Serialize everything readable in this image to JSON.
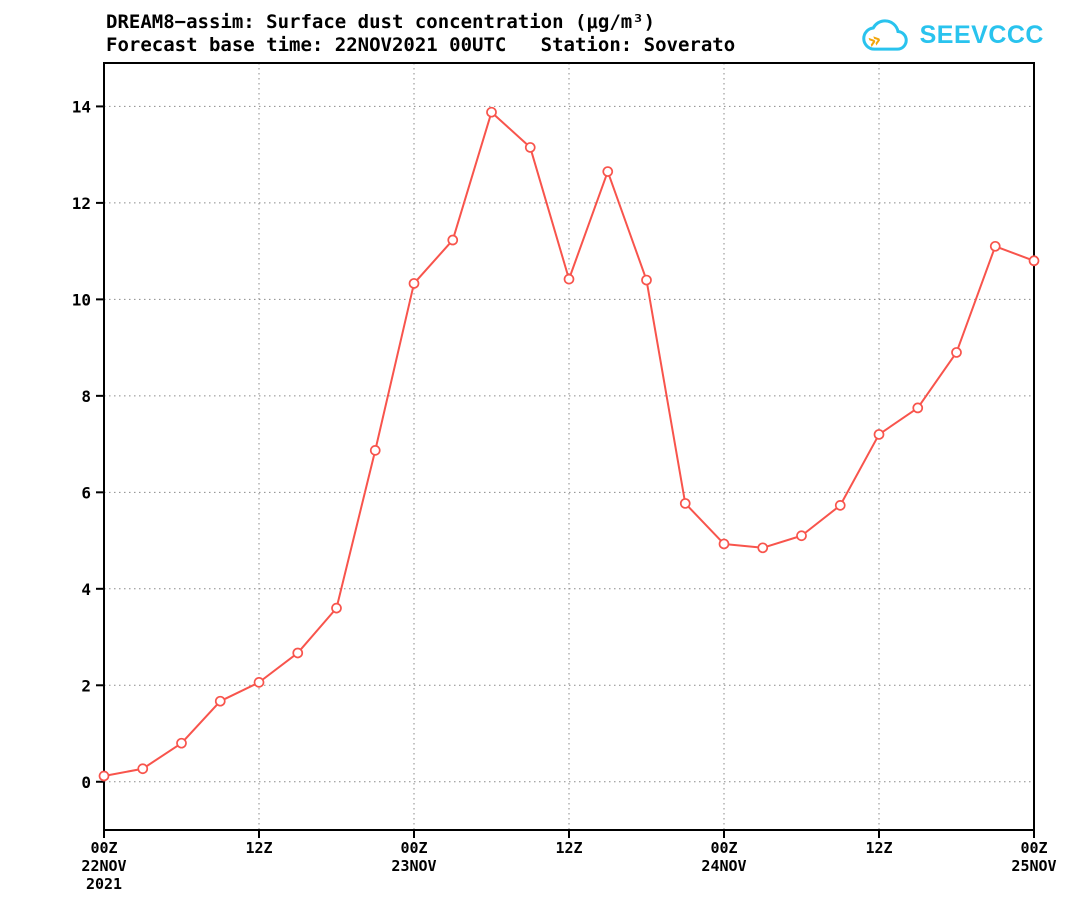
{
  "header": {
    "title_line1": "DREAM8−assim: Surface dust concentration (μg/m³)",
    "title_line2": "Forecast base time: 22NOV2021 00UTC   Station: Soverato",
    "logo_text": "SEEVCCC"
  },
  "colors": {
    "line": "#f8544c",
    "marker_fill": "#ffffff",
    "axis": "#000000",
    "grid": "#8a8a8a",
    "logo_cyan": "#29c3ee",
    "logo_yellow": "#f2a60a",
    "background": "#ffffff"
  },
  "chart_data": {
    "type": "line",
    "title": "DREAM8-assim: Surface dust concentration (μg/m³)",
    "subtitle": "Forecast base time: 22NOV2021 00UTC   Station: Soverato",
    "station": "Soverato",
    "xlabel": "",
    "ylabel": "",
    "grid": true,
    "legend": false,
    "marker": "open-circle",
    "x_hours": [
      0,
      3,
      6,
      9,
      12,
      15,
      18,
      21,
      24,
      27,
      30,
      33,
      36,
      39,
      42,
      45,
      48,
      51,
      54,
      57,
      60,
      63,
      66,
      69,
      72
    ],
    "values": [
      0.12,
      0.27,
      0.8,
      1.67,
      2.06,
      2.67,
      3.6,
      6.87,
      10.33,
      11.23,
      13.88,
      13.15,
      10.42,
      12.65,
      10.4,
      5.77,
      4.93,
      4.85,
      5.1,
      5.73,
      7.2,
      7.75,
      8.9,
      11.1,
      10.8
    ],
    "xlim": [
      0,
      72
    ],
    "ylim": [
      -1,
      14.9
    ],
    "yticks": [
      0,
      2,
      4,
      6,
      8,
      10,
      12,
      14
    ],
    "xticks": [
      {
        "hour": 0,
        "label": "00Z",
        "sub": "22NOV",
        "sub2": "2021"
      },
      {
        "hour": 12,
        "label": "12Z"
      },
      {
        "hour": 24,
        "label": "00Z",
        "sub": "23NOV"
      },
      {
        "hour": 36,
        "label": "12Z"
      },
      {
        "hour": 48,
        "label": "00Z",
        "sub": "24NOV"
      },
      {
        "hour": 60,
        "label": "12Z"
      },
      {
        "hour": 72,
        "label": "00Z",
        "sub": "25NOV"
      }
    ]
  }
}
